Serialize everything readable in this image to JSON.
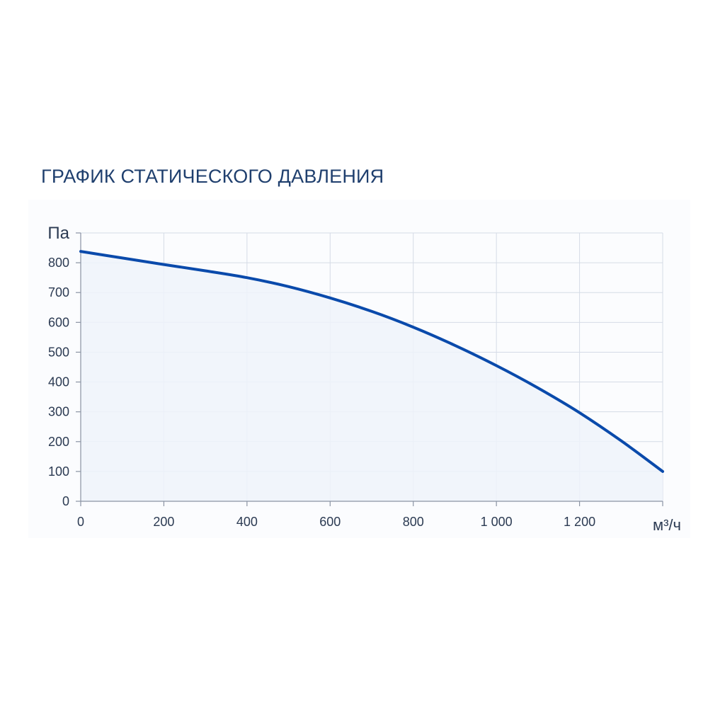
{
  "colors": {
    "title": "#1f3f6e",
    "line": "#0a4aab",
    "fill": "#eef3fa",
    "grid": "#d5dbe6",
    "axis": "#8a93a3",
    "tick_label": "#2b3a52"
  },
  "chart_data": {
    "type": "area",
    "title": "ГРАФИК СТАТИЧЕСКОГО ДАВЛЕНИЯ",
    "xlabel": "м³/ч",
    "ylabel": "Па",
    "xlim": [
      0,
      1400
    ],
    "ylim": [
      0,
      900
    ],
    "xticks": [
      0,
      200,
      400,
      600,
      800,
      1000,
      1200
    ],
    "xtick_labels": [
      "0",
      "200",
      "400",
      "600",
      "800",
      "1 000",
      "1 200"
    ],
    "yticks": [
      0,
      100,
      200,
      300,
      400,
      500,
      600,
      700,
      800
    ],
    "ytick_labels": [
      "0",
      "100",
      "200",
      "300",
      "400",
      "500",
      "600",
      "700",
      "800"
    ],
    "grid": true,
    "series": [
      {
        "x": [
          0,
          100,
          200,
          300,
          400,
          500,
          600,
          700,
          800,
          900,
          1000,
          1100,
          1200,
          1300,
          1400
        ],
        "y": [
          838,
          816,
          794,
          773,
          750,
          720,
          682,
          637,
          584,
          523,
          455,
          380,
          297,
          203,
          100
        ]
      }
    ]
  }
}
